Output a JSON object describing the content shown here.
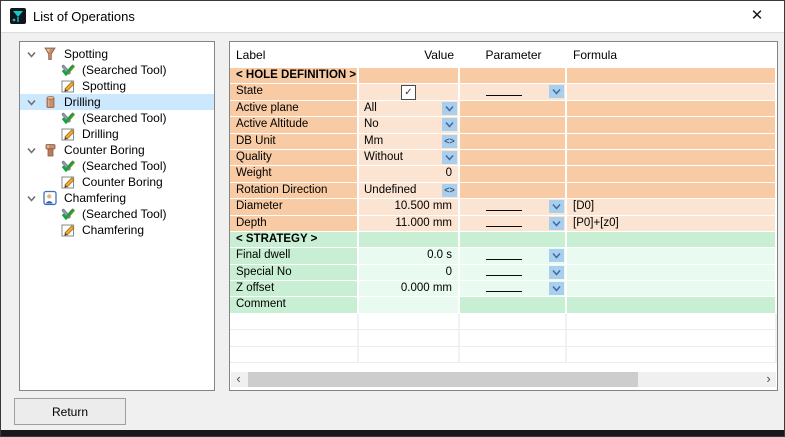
{
  "window": {
    "title": "List of Operations",
    "close_glyph": "✕"
  },
  "tree": {
    "groups": [
      {
        "label": "Spotting",
        "icon": "spotting-tool-icon",
        "expanded": true,
        "selected": false,
        "children": [
          {
            "label": "(Searched Tool)",
            "icon": "searched-tool-icon"
          },
          {
            "label": "Spotting",
            "icon": "edit-sheet-icon"
          }
        ]
      },
      {
        "label": "Drilling",
        "icon": "drilling-tool-icon",
        "expanded": true,
        "selected": true,
        "children": [
          {
            "label": "(Searched Tool)",
            "icon": "searched-tool-icon"
          },
          {
            "label": "Drilling",
            "icon": "edit-sheet-icon"
          }
        ]
      },
      {
        "label": "Counter Boring",
        "icon": "counter-boring-tool-icon",
        "expanded": true,
        "selected": false,
        "children": [
          {
            "label": "(Searched Tool)",
            "icon": "searched-tool-icon"
          },
          {
            "label": "Counter Boring",
            "icon": "edit-sheet-icon"
          }
        ]
      },
      {
        "label": "Chamfering",
        "icon": "chamfering-icon",
        "expanded": true,
        "selected": false,
        "children": [
          {
            "label": "(Searched Tool)",
            "icon": "searched-tool-icon"
          },
          {
            "label": "Chamfering",
            "icon": "edit-sheet-icon"
          }
        ]
      }
    ]
  },
  "table": {
    "headers": [
      "Label",
      "Value",
      "Parameter",
      "Formula"
    ],
    "rows": [
      {
        "label": "< HOLE DEFINITION >",
        "section": true,
        "theme": "orange"
      },
      {
        "label": "State",
        "theme": "orange",
        "value": "",
        "valueAlign": "center",
        "control": "checkbox",
        "checked": true,
        "paramEditable": true,
        "formula": ""
      },
      {
        "label": "Active plane",
        "theme": "orange",
        "value": "All",
        "valueAlign": "left",
        "control": "dropdown",
        "paramEditable": false,
        "formula": ""
      },
      {
        "label": "Active Altitude",
        "theme": "orange",
        "value": "No",
        "valueAlign": "left",
        "control": "dropdown",
        "paramEditable": false,
        "formula": ""
      },
      {
        "label": "DB Unit",
        "theme": "orange",
        "value": "Mm",
        "valueAlign": "left",
        "control": "spinner",
        "paramEditable": false,
        "formula": ""
      },
      {
        "label": "Quality",
        "theme": "orange",
        "value": "Without",
        "valueAlign": "left",
        "control": "dropdown",
        "paramEditable": false,
        "formula": ""
      },
      {
        "label": "Weight",
        "theme": "orange",
        "value": "0",
        "valueAlign": "right",
        "control": "none",
        "paramEditable": false,
        "formula": ""
      },
      {
        "label": "Rotation Direction",
        "theme": "orange",
        "value": "Undefined",
        "valueAlign": "left",
        "control": "spinner",
        "paramEditable": false,
        "formula": ""
      },
      {
        "label": "Diameter",
        "theme": "orange",
        "value": "10.500 mm",
        "valueAlign": "right",
        "control": "none",
        "paramEditable": true,
        "formula": "[D0]"
      },
      {
        "label": "Depth",
        "theme": "orange",
        "value": "11.000 mm",
        "valueAlign": "right",
        "control": "none",
        "paramEditable": true,
        "formula": "[P0]+[z0]"
      },
      {
        "label": "< STRATEGY >",
        "section": true,
        "theme": "green"
      },
      {
        "label": "Final dwell",
        "theme": "green",
        "value": "0.0 s",
        "valueAlign": "right",
        "control": "none",
        "paramEditable": true,
        "formula": ""
      },
      {
        "label": "Special No",
        "theme": "green",
        "value": "0",
        "valueAlign": "right",
        "control": "none",
        "paramEditable": true,
        "formula": ""
      },
      {
        "label": "Z offset",
        "theme": "green",
        "value": "0.000 mm",
        "valueAlign": "right",
        "control": "none",
        "paramEditable": true,
        "formula": ""
      },
      {
        "label": "Comment",
        "theme": "green",
        "value": "",
        "valueAlign": "left",
        "control": "none",
        "paramEditable": false,
        "formula": ""
      }
    ],
    "empty_row_count": 3,
    "param_blank_glyph": "_____"
  },
  "scrollbar": {
    "left_glyph": "‹",
    "right_glyph": "›"
  },
  "footer": {
    "return_label": "Return"
  },
  "colors": {
    "orange_dark": "#f8cba4",
    "orange_light": "#fce4d2",
    "green_dark": "#c8efd4",
    "green_light": "#e9faf0",
    "dropdown_bg": "#a9cfef",
    "dropdown_arrow": "#44699d",
    "tree_selection": "#cce8ff",
    "body_bg": "#f0f0f0"
  }
}
